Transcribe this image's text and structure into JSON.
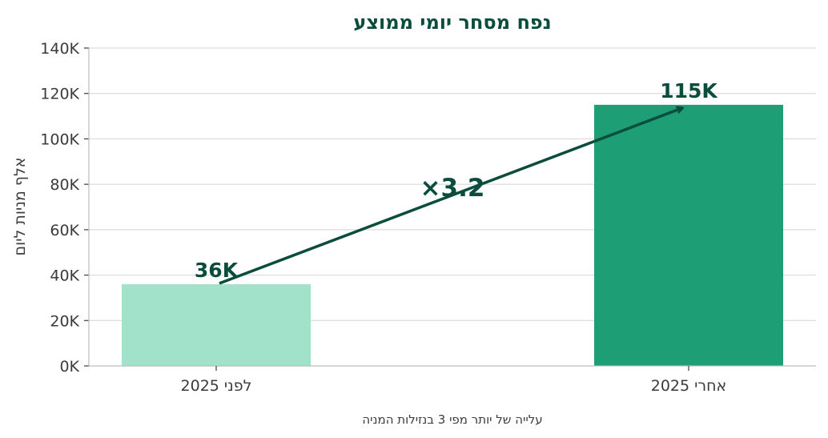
{
  "chart_data": {
    "type": "bar",
    "title": "נפח מסחר יומי ממוצע",
    "ylabel": "אלף מניות ליום",
    "xlabel": "עלייה של יותר מפי 3 בנזילות המניה",
    "categories": [
      "לפני 2025",
      "אחרי 2025"
    ],
    "values": [
      36,
      115
    ],
    "data_labels": [
      "36K",
      "115K"
    ],
    "bar_colors": [
      "#a2e2cb",
      "#1e9e74"
    ],
    "ylim": [
      0,
      140
    ],
    "yticks": [
      0,
      20,
      40,
      60,
      80,
      100,
      120,
      140
    ],
    "ytick_labels": [
      "0K",
      "20K",
      "40K",
      "60K",
      "80K",
      "100K",
      "120K",
      "140K"
    ],
    "grid": true,
    "annotation": {
      "text": "×3.2",
      "arrow_from": "לפני 2025",
      "arrow_to": "אחרי 2025",
      "color": "#0b4d3d"
    }
  }
}
